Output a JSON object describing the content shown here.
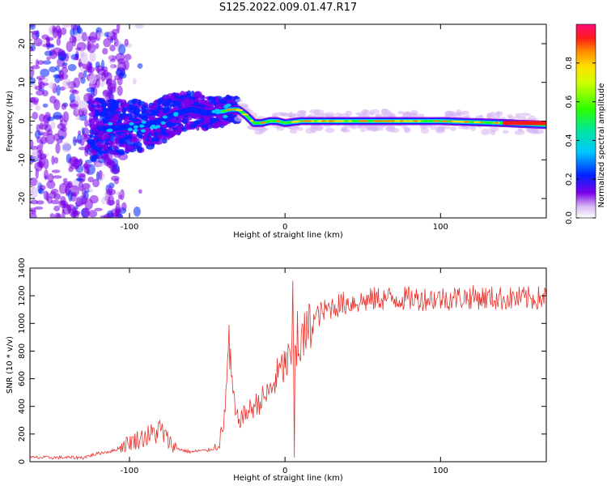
{
  "title": "S125.2022.009.01.47.R17",
  "chart_data": [
    {
      "type": "heatmap",
      "xlabel": "Height of straight line (km)",
      "ylabel": "Frequency (Hz)",
      "xlim": [
        -164,
        168
      ],
      "ylim": [
        -25,
        25
      ],
      "xticks": [
        -100,
        0,
        100
      ],
      "yticks": [
        -20,
        -10,
        0,
        10,
        20
      ],
      "colorbar": {
        "label": "Normalized spectral amplitude",
        "range": [
          0,
          1
        ],
        "ticks": [
          "0.0",
          "0.2",
          "0.4",
          "0.6",
          "0.8"
        ]
      },
      "ridge": {
        "x": [
          -115,
          -100,
          -90,
          -80,
          -70,
          -60,
          -50,
          -40,
          -35,
          -30,
          -25,
          -20,
          -15,
          -10,
          -5,
          0,
          10,
          30,
          60,
          100,
          140,
          168
        ],
        "frequency": [
          -2,
          -1.5,
          -1,
          0,
          2,
          3,
          2,
          2.5,
          3,
          3,
          1.5,
          -0.5,
          -0.5,
          0,
          0,
          -0.5,
          0,
          0,
          0,
          0,
          -0.5,
          -1
        ]
      }
    },
    {
      "type": "line",
      "xlabel": "Height of straight line (km)",
      "ylabel": "SNR (10 * v/v)",
      "xlim": [
        -164,
        168
      ],
      "ylim": [
        0,
        1400
      ],
      "xticks": [
        -100,
        0,
        100
      ],
      "yticks": [
        0,
        200,
        400,
        600,
        800,
        1000,
        1200,
        1400
      ],
      "color": "#e8322c",
      "envelope": {
        "x": [
          -164,
          -130,
          -120,
          -110,
          -100,
          -90,
          -85,
          -80,
          -75,
          -70,
          -65,
          -60,
          -55,
          -50,
          -45,
          -40,
          -38,
          -36,
          -34,
          -32,
          -30,
          -25,
          -20,
          -15,
          -10,
          -5,
          0,
          5,
          10,
          15,
          20,
          30,
          40,
          50,
          60,
          80,
          100,
          120,
          140,
          160,
          168
        ],
        "y": [
          30,
          30,
          60,
          80,
          140,
          180,
          200,
          230,
          150,
          100,
          80,
          70,
          80,
          80,
          100,
          200,
          500,
          800,
          550,
          350,
          300,
          350,
          400,
          450,
          500,
          620,
          700,
          750,
          850,
          950,
          1050,
          1120,
          1150,
          1160,
          1180,
          1180,
          1180,
          1190,
          1180,
          1180,
          1190
        ]
      },
      "spikes": [
        {
          "x": -36,
          "y": 990
        },
        {
          "x": 5,
          "y": 1310
        },
        {
          "x": 6,
          "y": 30
        },
        {
          "x": 8,
          "y": 1090
        }
      ]
    }
  ]
}
